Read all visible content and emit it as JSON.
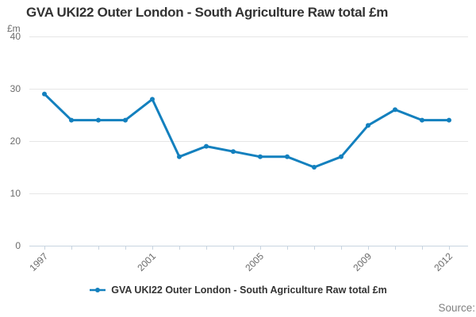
{
  "title": "GVA UKI22 Outer London - South Agriculture Raw total £m",
  "y_axis_unit": "£m",
  "legend": {
    "label": "GVA UKI22 Outer London - South Agriculture Raw total £m"
  },
  "source": {
    "label": "Source:"
  },
  "colors": {
    "line": "#1380be",
    "grid": "#e6e6e6",
    "axis": "#c8d4e0",
    "tick_label": "#6b6b6b",
    "title_text": "#333333",
    "legend_text": "#333333",
    "source_text": "#808080"
  },
  "chart_data": {
    "type": "line",
    "title": "GVA UKI22 Outer London - South Agriculture Raw total £m",
    "xlabel": "",
    "ylabel": "£m",
    "x": [
      1997,
      1998,
      1999,
      2000,
      2001,
      2002,
      2003,
      2004,
      2005,
      2006,
      2007,
      2008,
      2009,
      2010,
      2011,
      2012
    ],
    "series": [
      {
        "name": "GVA UKI22 Outer London - South Agriculture Raw total £m",
        "color": "#1380be",
        "values": [
          29,
          24,
          24,
          24,
          28,
          17,
          19,
          18,
          17,
          17,
          15,
          17,
          23,
          26,
          24,
          24
        ]
      }
    ],
    "ylim": [
      0,
      40
    ],
    "yticks": [
      0,
      10,
      20,
      30,
      40
    ],
    "xtick_labels": [
      "1997",
      "2001",
      "2005",
      "2009",
      "2012"
    ],
    "xtick_label_rotation": -45,
    "grid": true,
    "legend_position": "bottom",
    "marker": "square-dot"
  }
}
